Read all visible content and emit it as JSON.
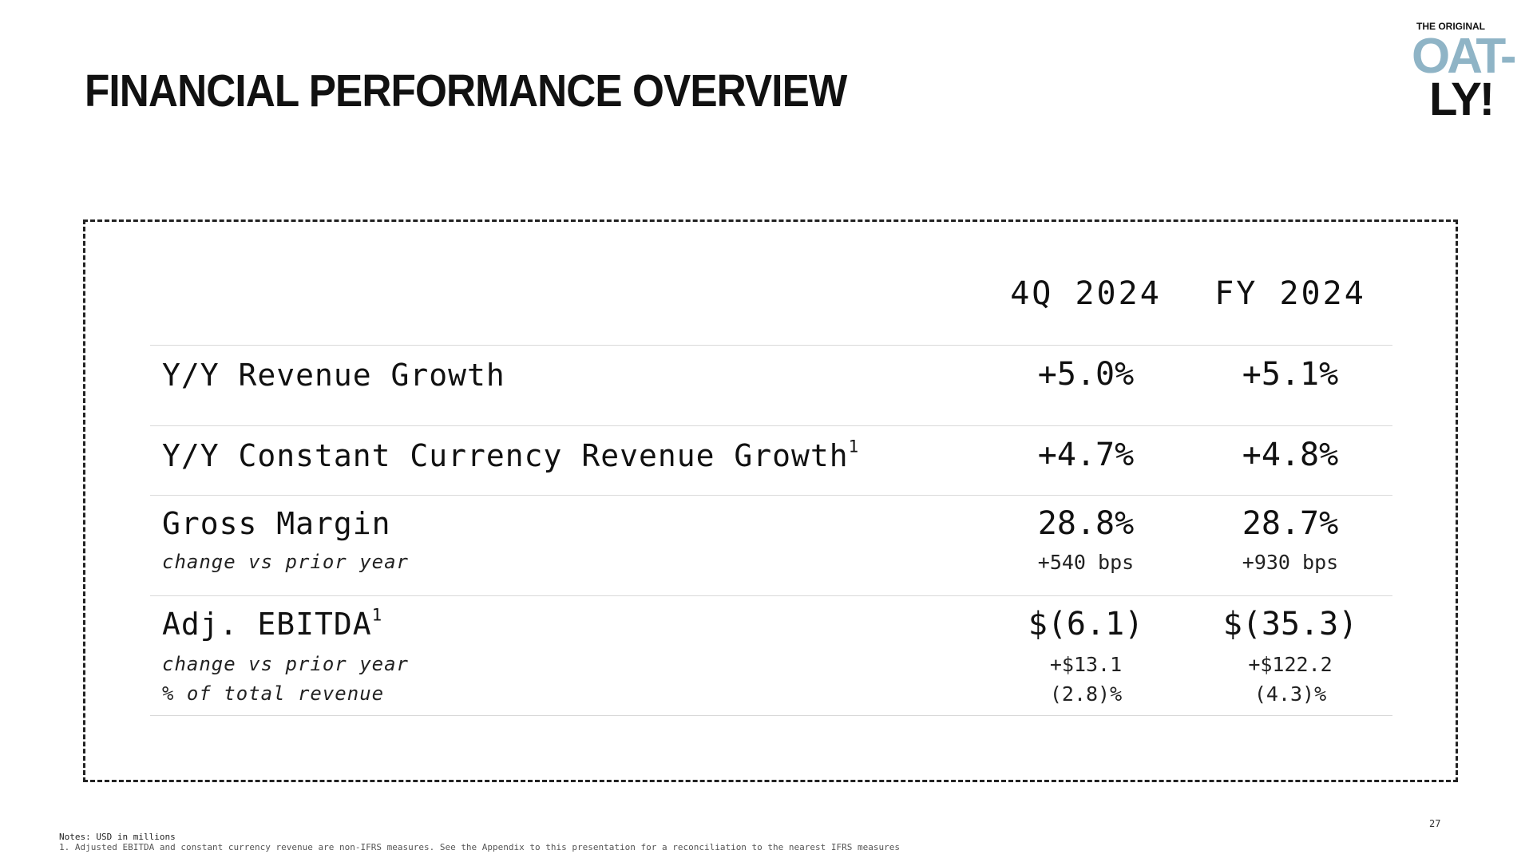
{
  "header": {
    "title": "FINANCIAL PERFORMANCE OVERVIEW"
  },
  "logo": {
    "small_text": "THE ORIGINAL",
    "line1": "OAT-",
    "line2": "LY!"
  },
  "table": {
    "columns": [
      "4Q 2024",
      "FY 2024"
    ],
    "rows": [
      {
        "label": "Y/Y Revenue Growth",
        "values": [
          "+5.0%",
          "+5.1%"
        ]
      },
      {
        "label": "Y/Y Constant Currency Revenue Growth",
        "sup": "1",
        "values": [
          "+4.7%",
          "+4.8%"
        ]
      },
      {
        "label": "Gross Margin",
        "values": [
          "28.8%",
          "28.7%"
        ],
        "sub_labels": [
          "change vs prior year"
        ],
        "sub_values": [
          [
            "+540 bps",
            "+930 bps"
          ]
        ]
      },
      {
        "label": "Adj. EBITDA",
        "sup": "1",
        "values": [
          "$(6.1)",
          "$(35.3)"
        ],
        "sub_labels": [
          "change vs prior year",
          "% of total revenue"
        ],
        "sub_values": [
          [
            "+$13.1",
            "+$122.2"
          ],
          [
            "(2.8)%",
            "(4.3)%"
          ]
        ]
      }
    ]
  },
  "footer": {
    "note1": "Notes: USD in millions",
    "note2": "1. Adjusted EBITDA and constant currency revenue are non-IFRS measures. See the Appendix to this presentation for a reconciliation to the nearest IFRS measures",
    "page_number": "27"
  }
}
